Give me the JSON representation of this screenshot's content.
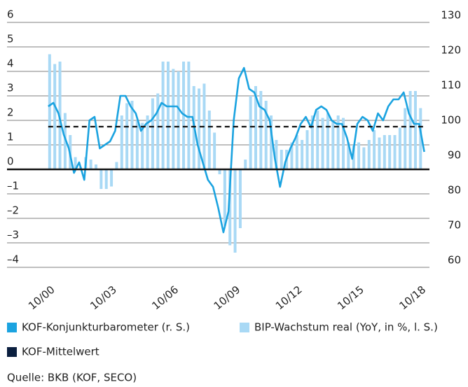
{
  "chart_data": {
    "type": "bar-line",
    "source": "Quelle: BKB (KOF, SECO)",
    "xlim": [
      1998.5,
      2019.0
    ],
    "xticks": [
      {
        "value": 2000.75,
        "label": "10/00"
      },
      {
        "value": 2003.75,
        "label": "10/03"
      },
      {
        "value": 2006.75,
        "label": "10/06"
      },
      {
        "value": 2009.75,
        "label": "10/09"
      },
      {
        "value": 2012.75,
        "label": "10/12"
      },
      {
        "value": 2015.75,
        "label": "10/15"
      },
      {
        "value": 2018.75,
        "label": "10/18"
      }
    ],
    "ylim": [
      -4.5,
      6.5
    ],
    "yticks": [
      {
        "value": -4,
        "label": "–4"
      },
      {
        "value": -3,
        "label": "–3"
      },
      {
        "value": -2,
        "label": "–2"
      },
      {
        "value": -1,
        "label": "–1"
      },
      0,
      1,
      2,
      3,
      4,
      5,
      6
    ],
    "y2lim": [
      54.5,
      131.5
    ],
    "y2ticks": [
      60,
      70,
      80,
      90,
      100,
      110,
      120,
      130
    ],
    "grid": true,
    "series": [
      {
        "name": "KOF-Konjunkturbarometer (r. S.)",
        "type": "line",
        "axis": "y2",
        "color": "#1ba3e0",
        "x": [
          2000.5,
          2000.75,
          2001,
          2001.25,
          2001.5,
          2001.75,
          2002,
          2002.25,
          2002.5,
          2002.75,
          2003,
          2003.25,
          2003.5,
          2003.75,
          2004,
          2004.25,
          2004.5,
          2004.75,
          2005,
          2005.25,
          2005.5,
          2005.75,
          2006,
          2006.25,
          2006.5,
          2006.75,
          2007,
          2007.25,
          2007.5,
          2007.75,
          2008,
          2008.25,
          2008.5,
          2008.75,
          2009,
          2009.25,
          2009.5,
          2009.75,
          2010,
          2010.25,
          2010.5,
          2010.75,
          2011,
          2011.25,
          2011.5,
          2011.75,
          2012,
          2012.25,
          2012.5,
          2012.75,
          2013,
          2013.25,
          2013.5,
          2013.75,
          2014,
          2014.25,
          2014.5,
          2014.75,
          2015,
          2015.25,
          2015.5,
          2015.75,
          2016,
          2016.25,
          2016.5,
          2016.75,
          2017,
          2017.25,
          2017.5,
          2017.75,
          2018,
          2018.25,
          2018.5,
          2018.75
        ],
        "values": [
          104,
          105,
          102,
          96,
          92,
          85,
          88,
          83,
          100,
          101,
          92,
          93,
          94,
          97,
          107,
          107,
          104,
          102,
          97,
          99,
          100,
          102,
          105,
          104,
          104,
          104,
          102,
          101,
          101,
          93,
          88,
          83,
          81,
          75,
          68,
          74,
          100,
          112,
          115,
          109,
          108,
          104,
          103,
          100,
          89,
          81,
          88,
          92,
          95,
          99,
          101,
          98,
          103,
          104,
          103,
          100,
          99,
          99,
          95,
          89,
          99,
          101,
          100,
          97,
          102,
          100,
          104,
          106,
          106,
          108,
          102,
          99,
          99,
          91
        ]
      },
      {
        "name": "BIP-Wachstum real (YoY, in %, l. S.)",
        "type": "bar",
        "color": "#a9d9f5",
        "x": [
          2000.5,
          2000.75,
          2001,
          2001.25,
          2001.5,
          2001.75,
          2002,
          2002.25,
          2002.5,
          2002.75,
          2003,
          2003.25,
          2003.5,
          2003.75,
          2004,
          2004.25,
          2004.5,
          2004.75,
          2005,
          2005.25,
          2005.5,
          2005.75,
          2006,
          2006.25,
          2006.5,
          2006.75,
          2007,
          2007.25,
          2007.5,
          2007.75,
          2008,
          2008.25,
          2008.5,
          2008.75,
          2009,
          2009.25,
          2009.5,
          2009.75,
          2010,
          2010.25,
          2010.5,
          2010.75,
          2011,
          2011.25,
          2011.5,
          2011.75,
          2012,
          2012.25,
          2012.5,
          2012.75,
          2013,
          2013.25,
          2013.5,
          2013.75,
          2014,
          2014.25,
          2014.5,
          2014.75,
          2015,
          2015.25,
          2015.5,
          2015.75,
          2016,
          2016.25,
          2016.5,
          2016.75,
          2017,
          2017.25,
          2017.5,
          2017.75,
          2018,
          2018.25,
          2018.5
        ],
        "values": [
          4.7,
          4.3,
          4.4,
          2.3,
          1.4,
          0.5,
          0.1,
          0.5,
          0.4,
          0.2,
          -0.8,
          -0.8,
          -0.7,
          0.3,
          2.2,
          2.7,
          2.8,
          2.0,
          1.9,
          2.2,
          2.9,
          3.1,
          4.4,
          4.4,
          4.1,
          4.0,
          4.4,
          4.4,
          3.4,
          3.3,
          3.5,
          2.4,
          1.5,
          -0.2,
          -2.3,
          -3.1,
          -3.4,
          -2.4,
          0.4,
          3.0,
          3.4,
          3.2,
          2.8,
          2.2,
          1.2,
          0.8,
          0.8,
          1.1,
          1.4,
          1.2,
          1.6,
          2.2,
          2.4,
          2.1,
          2.3,
          2.0,
          2.2,
          2.1,
          1.1,
          1.0,
          1.1,
          0.9,
          1.2,
          1.6,
          1.3,
          1.4,
          1.4,
          1.4,
          1.7,
          2.5,
          3.2,
          3.2,
          2.5
        ]
      },
      {
        "name": "KOF-Mittelwert",
        "type": "hline",
        "axis": "y2",
        "color": "#0b1f3f",
        "value": 98.2
      }
    ]
  }
}
